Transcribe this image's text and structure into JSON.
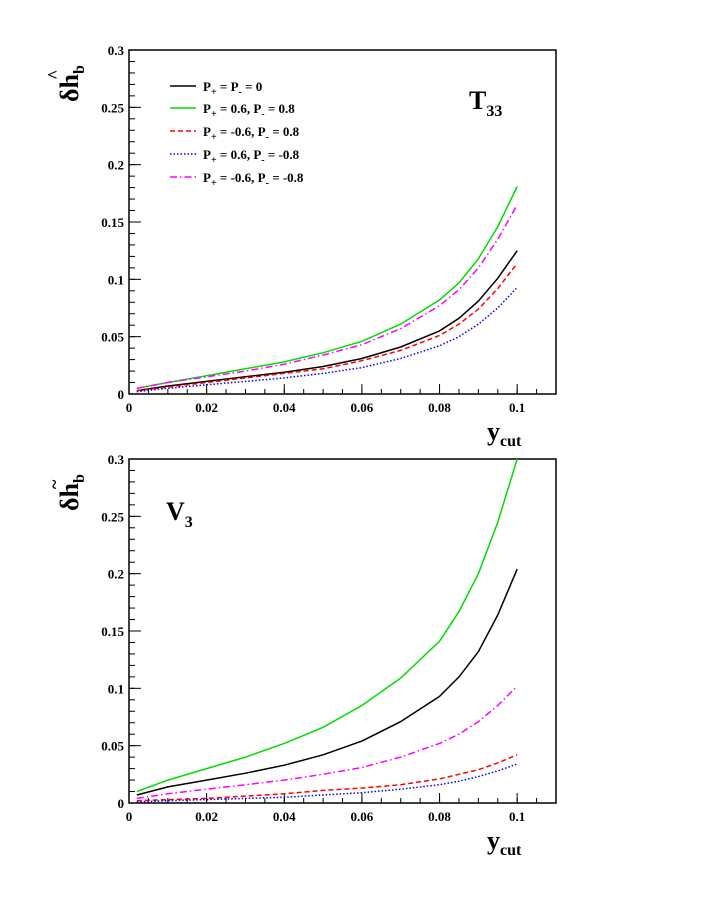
{
  "chart_data": [
    {
      "type": "line",
      "panel_label": {
        "main": "T",
        "sub": "33"
      },
      "ylabel": {
        "main": "δh",
        "sub": "b",
        "accent": "^"
      },
      "xlabel": {
        "main": "y",
        "sub": "cut"
      },
      "xlim": [
        0,
        0.11
      ],
      "ylim": [
        0,
        0.3
      ],
      "x_ticks": [
        "0",
        "0.02",
        "0.04",
        "0.06",
        "0.08",
        "0.1"
      ],
      "y_ticks": [
        "0",
        "0.05",
        "0.1",
        "0.15",
        "0.2",
        "0.25",
        "0.3"
      ],
      "legend_position": "top-left",
      "x": [
        0.002,
        0.01,
        0.02,
        0.03,
        0.04,
        0.05,
        0.06,
        0.07,
        0.08,
        0.085,
        0.09,
        0.095,
        0.1
      ],
      "series": [
        {
          "name": "P+ = P- = 0",
          "label": {
            "a": "P",
            "as": "+",
            "b": " = P",
            "bs": "-",
            "c": " = 0"
          },
          "color": "#000000",
          "dash": "solid",
          "values": [
            0.003,
            0.007,
            0.011,
            0.015,
            0.019,
            0.024,
            0.031,
            0.041,
            0.055,
            0.066,
            0.081,
            0.101,
            0.125
          ]
        },
        {
          "name": "P+ = 0.6, P- = 0.8",
          "label": {
            "a": "P",
            "as": "+",
            "b": " = 0.6,  P",
            "bs": "-",
            "c": " =  0.8"
          },
          "color": "#00dd00",
          "dash": "solid",
          "values": [
            0.005,
            0.01,
            0.016,
            0.022,
            0.028,
            0.036,
            0.046,
            0.061,
            0.082,
            0.097,
            0.118,
            0.146,
            0.181
          ]
        },
        {
          "name": "P+ = -0.6, P- = 0.8",
          "label": {
            "a": "P",
            "as": "+",
            "b": " = -0.6,  P",
            "bs": "-",
            "c": " =  0.8"
          },
          "color": "#ff0000",
          "dash": "dashed",
          "values": [
            0.003,
            0.006,
            0.01,
            0.014,
            0.018,
            0.022,
            0.029,
            0.038,
            0.051,
            0.061,
            0.074,
            0.092,
            0.114
          ]
        },
        {
          "name": "P+ = 0.6, P- = -0.8",
          "label": {
            "a": "P",
            "as": "+",
            "b": " = 0.6,  P",
            "bs": "-",
            "c": " = -0.8"
          },
          "color": "#0000ff",
          "dash": "dotted",
          "values": [
            0.002,
            0.005,
            0.008,
            0.011,
            0.014,
            0.018,
            0.023,
            0.031,
            0.042,
            0.05,
            0.061,
            0.075,
            0.093
          ]
        },
        {
          "name": "P+ = -0.6, P- = -0.8",
          "label": {
            "a": "P",
            "as": "+",
            "b": " = -0.6,  P",
            "bs": "-",
            "c": " = -0.8"
          },
          "color": "#ff00ff",
          "dash": "dashdot",
          "values": [
            0.005,
            0.01,
            0.015,
            0.02,
            0.026,
            0.034,
            0.043,
            0.057,
            0.077,
            0.091,
            0.11,
            0.135,
            0.165
          ]
        }
      ]
    },
    {
      "type": "line",
      "panel_label": {
        "main": "V",
        "sub": "3"
      },
      "ylabel": {
        "main": "δh",
        "sub": "b",
        "accent": "~"
      },
      "xlabel": {
        "main": "y",
        "sub": "cut"
      },
      "xlim": [
        0,
        0.11
      ],
      "ylim": [
        0,
        0.3
      ],
      "x_ticks": [
        "0",
        "0.02",
        "0.04",
        "0.06",
        "0.08",
        "0.1"
      ],
      "y_ticks": [
        "0",
        "0.05",
        "0.1",
        "0.15",
        "0.2",
        "0.25",
        "0.3"
      ],
      "x": [
        0.002,
        0.01,
        0.02,
        0.03,
        0.04,
        0.05,
        0.06,
        0.07,
        0.08,
        0.085,
        0.09,
        0.095,
        0.1
      ],
      "series": [
        {
          "name": "P+ = P- = 0",
          "color": "#000000",
          "dash": "solid",
          "values": [
            0.007,
            0.014,
            0.02,
            0.026,
            0.033,
            0.042,
            0.054,
            0.071,
            0.093,
            0.11,
            0.132,
            0.164,
            0.204
          ]
        },
        {
          "name": "P+ = 0.6, P- = 0.8",
          "color": "#00dd00",
          "dash": "solid",
          "values": [
            0.01,
            0.02,
            0.03,
            0.04,
            0.052,
            0.066,
            0.085,
            0.109,
            0.141,
            0.167,
            0.2,
            0.245,
            0.3
          ]
        },
        {
          "name": "P+ = -0.6, P- = 0.8",
          "color": "#ff0000",
          "dash": "dashed",
          "values": [
            0.002,
            0.003,
            0.004,
            0.006,
            0.008,
            0.011,
            0.013,
            0.016,
            0.021,
            0.025,
            0.029,
            0.035,
            0.042
          ]
        },
        {
          "name": "P+ = 0.6, P- = -0.8",
          "color": "#0000ff",
          "dash": "dotted",
          "values": [
            0.001,
            0.002,
            0.003,
            0.004,
            0.005,
            0.007,
            0.009,
            0.012,
            0.016,
            0.019,
            0.023,
            0.028,
            0.034
          ]
        },
        {
          "name": "P+ = -0.6, P- = -0.8",
          "color": "#ff00ff",
          "dash": "dashdot",
          "values": [
            0.004,
            0.008,
            0.012,
            0.016,
            0.02,
            0.025,
            0.031,
            0.04,
            0.052,
            0.06,
            0.071,
            0.085,
            0.102
          ]
        }
      ]
    }
  ]
}
